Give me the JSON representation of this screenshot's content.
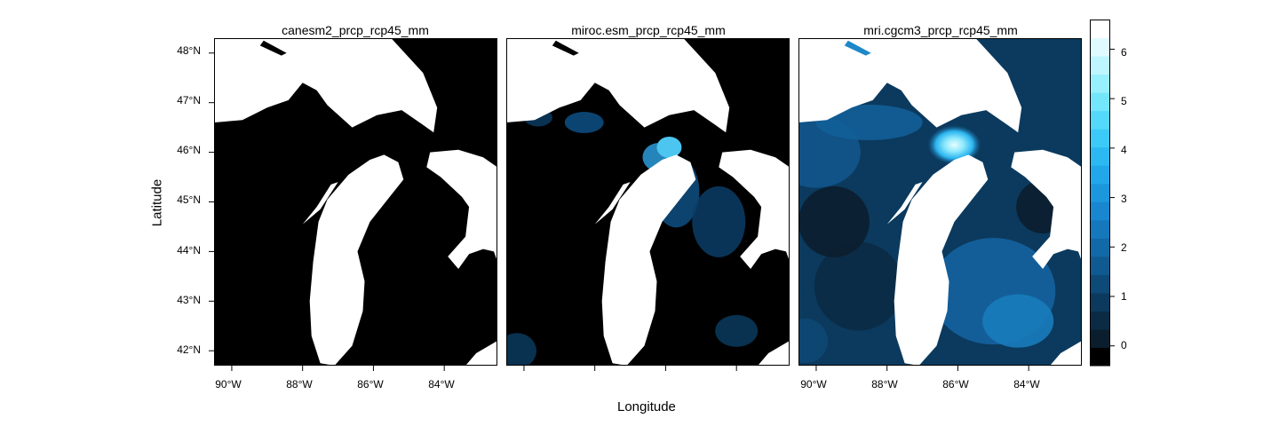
{
  "chart_data": {
    "type": "heatmap",
    "xlabel": "Longitude",
    "ylabel": "Latitude",
    "xlim": [
      -90.5,
      -82.5
    ],
    "ylim": [
      41.7,
      48.3
    ],
    "panels": [
      {
        "title": "canesm2_prcp_rcp45_mm",
        "x_ticks": [
          "90°W",
          "88°W",
          "86°W",
          "84°W"
        ],
        "intensity": 0.02
      },
      {
        "title": "miroc.esm_prcp_rcp45_mm",
        "x_ticks": [],
        "intensity": 0.35
      },
      {
        "title": "mri.cgcm3_prcp_rcp45_mm",
        "x_ticks": [
          "90°W",
          "88°W",
          "86°W",
          "84°W"
        ],
        "intensity": 1.0
      }
    ],
    "y_ticks": [
      "48°N",
      "47°N",
      "46°N",
      "45°N",
      "44°N",
      "43°N",
      "42°N"
    ],
    "colorbar": {
      "ticks": [
        "6",
        "5",
        "4",
        "3",
        "2",
        "1",
        "0"
      ],
      "range": [
        -0.4,
        6.6
      ],
      "colors": [
        "#000000",
        "#0b1e2e",
        "#0b2b45",
        "#0b3a5e",
        "#0d4a78",
        "#0f5a90",
        "#1269a8",
        "#1578bd",
        "#1887cf",
        "#1c97de",
        "#22a8ea",
        "#2cb9f3",
        "#3ccaf8",
        "#55d9fb",
        "#74e6fc",
        "#98effd",
        "#bdf6fe",
        "#e0fbff",
        "#ffffff"
      ]
    }
  }
}
